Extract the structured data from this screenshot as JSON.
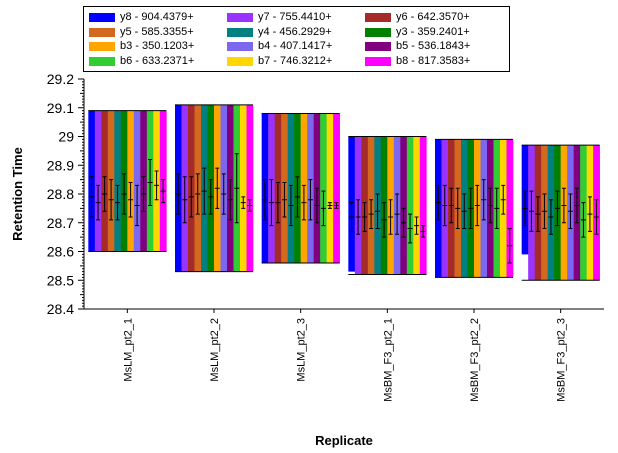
{
  "chart_data": {
    "type": "bar",
    "xlabel": "Replicate",
    "ylabel": "Retention Time",
    "ylim": [
      28.4,
      29.2
    ],
    "yticks": [
      "28.4",
      "28.5",
      "28.6",
      "28.7",
      "28.8",
      "28.9",
      "29",
      "29.1",
      "29.2"
    ],
    "legend_position": "top",
    "categories": [
      "MsLM_pt2_1",
      "MsLM_pt2_2",
      "MsLM_pt2_3",
      "MsBM_F3_pt2_1",
      "MsBM_F3_pt2_2",
      "MsBM_F3_pt2_3"
    ],
    "series": [
      {
        "name": "y8 - 904.4379+",
        "color": "#0000ff",
        "ranges": [
          [
            28.6,
            29.09
          ],
          [
            28.53,
            29.11
          ],
          [
            28.56,
            29.08
          ],
          [
            28.53,
            29.0
          ],
          [
            28.51,
            28.99
          ],
          [
            28.59,
            28.97
          ]
        ],
        "points": [
          [
            28.79,
            0.07
          ],
          [
            28.8,
            0.07
          ],
          [
            28.78,
            0.07
          ],
          [
            28.72,
            0.05
          ],
          [
            28.77,
            0.06
          ],
          [
            28.75,
            0.06
          ]
        ]
      },
      {
        "name": "y7 - 755.4410+",
        "color": "#9933ff",
        "ranges": [
          [
            28.6,
            29.09
          ],
          [
            28.53,
            29.11
          ],
          [
            28.56,
            29.08
          ],
          [
            28.52,
            29.0
          ],
          [
            28.51,
            28.99
          ],
          [
            28.5,
            28.97
          ]
        ],
        "points": [
          [
            28.77,
            0.06
          ],
          [
            28.78,
            0.08
          ],
          [
            28.77,
            0.08
          ],
          [
            28.72,
            0.06
          ],
          [
            28.76,
            0.07
          ],
          [
            28.74,
            0.07
          ]
        ]
      },
      {
        "name": "y6 - 642.3570+",
        "color": "#a52a2a",
        "ranges": [
          [
            28.6,
            29.09
          ],
          [
            28.53,
            29.11
          ],
          [
            28.56,
            29.08
          ],
          [
            28.52,
            29.0
          ],
          [
            28.51,
            28.99
          ],
          [
            28.5,
            28.97
          ]
        ],
        "points": [
          [
            28.8,
            0.06
          ],
          [
            28.79,
            0.07
          ],
          [
            28.77,
            0.07
          ],
          [
            28.72,
            0.05
          ],
          [
            28.76,
            0.06
          ],
          [
            28.73,
            0.06
          ]
        ]
      },
      {
        "name": "y5 - 585.3355+",
        "color": "#d2691e",
        "ranges": [
          [
            28.6,
            29.09
          ],
          [
            28.53,
            29.11
          ],
          [
            28.56,
            29.08
          ],
          [
            28.52,
            29.0
          ],
          [
            28.51,
            28.99
          ],
          [
            28.5,
            28.97
          ]
        ],
        "points": [
          [
            28.78,
            0.07
          ],
          [
            28.8,
            0.07
          ],
          [
            28.78,
            0.06
          ],
          [
            28.73,
            0.05
          ],
          [
            28.75,
            0.07
          ],
          [
            28.74,
            0.06
          ]
        ]
      },
      {
        "name": "y4 - 456.2929+",
        "color": "#008080",
        "ranges": [
          [
            28.6,
            29.09
          ],
          [
            28.53,
            29.11
          ],
          [
            28.56,
            29.08
          ],
          [
            28.52,
            29.0
          ],
          [
            28.51,
            28.99
          ],
          [
            28.5,
            28.97
          ]
        ],
        "points": [
          [
            28.77,
            0.06
          ],
          [
            28.81,
            0.08
          ],
          [
            28.76,
            0.07
          ],
          [
            28.74,
            0.06
          ],
          [
            28.74,
            0.06
          ],
          [
            28.72,
            0.06
          ]
        ]
      },
      {
        "name": "y3 - 359.2401+",
        "color": "#008000",
        "ranges": [
          [
            28.6,
            29.09
          ],
          [
            28.53,
            29.11
          ],
          [
            28.56,
            29.08
          ],
          [
            28.52,
            29.0
          ],
          [
            28.51,
            28.99
          ],
          [
            28.5,
            28.97
          ]
        ],
        "points": [
          [
            28.8,
            0.07
          ],
          [
            28.79,
            0.06
          ],
          [
            28.79,
            0.07
          ],
          [
            28.71,
            0.06
          ],
          [
            28.75,
            0.07
          ],
          [
            28.75,
            0.06
          ]
        ]
      },
      {
        "name": "b3 - 350.1203+",
        "color": "#ffa500",
        "ranges": [
          [
            28.6,
            29.09
          ],
          [
            28.53,
            29.11
          ],
          [
            28.56,
            29.08
          ],
          [
            28.52,
            29.0
          ],
          [
            28.51,
            28.99
          ],
          [
            28.5,
            28.97
          ]
        ],
        "points": [
          [
            28.78,
            0.06
          ],
          [
            28.82,
            0.07
          ],
          [
            28.77,
            0.06
          ],
          [
            28.72,
            0.06
          ],
          [
            28.76,
            0.07
          ],
          [
            28.76,
            0.06
          ]
        ]
      },
      {
        "name": "b4 - 407.1417+",
        "color": "#7b68ee",
        "ranges": [
          [
            28.6,
            29.09
          ],
          [
            28.53,
            29.11
          ],
          [
            28.56,
            29.08
          ],
          [
            28.52,
            29.0
          ],
          [
            28.51,
            28.99
          ],
          [
            28.5,
            28.97
          ]
        ],
        "points": [
          [
            28.76,
            0.07
          ],
          [
            28.8,
            0.07
          ],
          [
            28.78,
            0.07
          ],
          [
            28.73,
            0.07
          ],
          [
            28.78,
            0.07
          ],
          [
            28.74,
            0.06
          ]
        ]
      },
      {
        "name": "b5 - 536.1843+",
        "color": "#800080",
        "ranges": [
          [
            28.6,
            29.09
          ],
          [
            28.53,
            29.11
          ],
          [
            28.56,
            29.08
          ],
          [
            28.52,
            29.0
          ],
          [
            28.51,
            28.99
          ],
          [
            28.5,
            28.97
          ]
        ],
        "points": [
          [
            28.8,
            0.06
          ],
          [
            28.78,
            0.07
          ],
          [
            28.76,
            0.06
          ],
          [
            28.7,
            0.05
          ],
          [
            28.76,
            0.06
          ],
          [
            28.76,
            0.06
          ]
        ]
      },
      {
        "name": "b6 - 633.2371+",
        "color": "#32cd32",
        "ranges": [
          [
            28.6,
            29.09
          ],
          [
            28.53,
            29.11
          ],
          [
            28.56,
            29.08
          ],
          [
            28.52,
            29.0
          ],
          [
            28.51,
            28.99
          ],
          [
            28.5,
            28.97
          ]
        ],
        "points": [
          [
            28.84,
            0.08
          ],
          [
            28.82,
            0.12
          ],
          [
            28.75,
            0.06
          ],
          [
            28.68,
            0.05
          ],
          [
            28.75,
            0.07
          ],
          [
            28.71,
            0.06
          ]
        ]
      },
      {
        "name": "b7 - 746.3212+",
        "color": "#ffd700",
        "ranges": [
          [
            28.6,
            29.09
          ],
          [
            28.53,
            29.11
          ],
          [
            28.56,
            29.08
          ],
          [
            28.52,
            29.0
          ],
          [
            28.51,
            28.99
          ],
          [
            28.5,
            28.97
          ]
        ],
        "points": [
          [
            28.83,
            0.05
          ],
          [
            28.77,
            0.02
          ],
          [
            28.76,
            0.01
          ],
          [
            28.69,
            0.03
          ],
          [
            28.78,
            0.05
          ],
          [
            28.73,
            0.06
          ]
        ]
      },
      {
        "name": "b8 - 817.3583+",
        "color": "#ff00ff",
        "ranges": [
          [
            28.6,
            29.09
          ],
          [
            28.53,
            29.11
          ],
          [
            28.56,
            29.08
          ],
          [
            28.52,
            29.0
          ],
          [
            28.51,
            28.99
          ],
          [
            28.5,
            28.97
          ]
        ],
        "points": [
          [
            28.81,
            0.04
          ],
          [
            28.76,
            0.02
          ],
          [
            28.76,
            0.01
          ],
          [
            28.67,
            0.02
          ],
          [
            28.62,
            0.06
          ],
          [
            28.72,
            0.06
          ]
        ]
      }
    ]
  }
}
